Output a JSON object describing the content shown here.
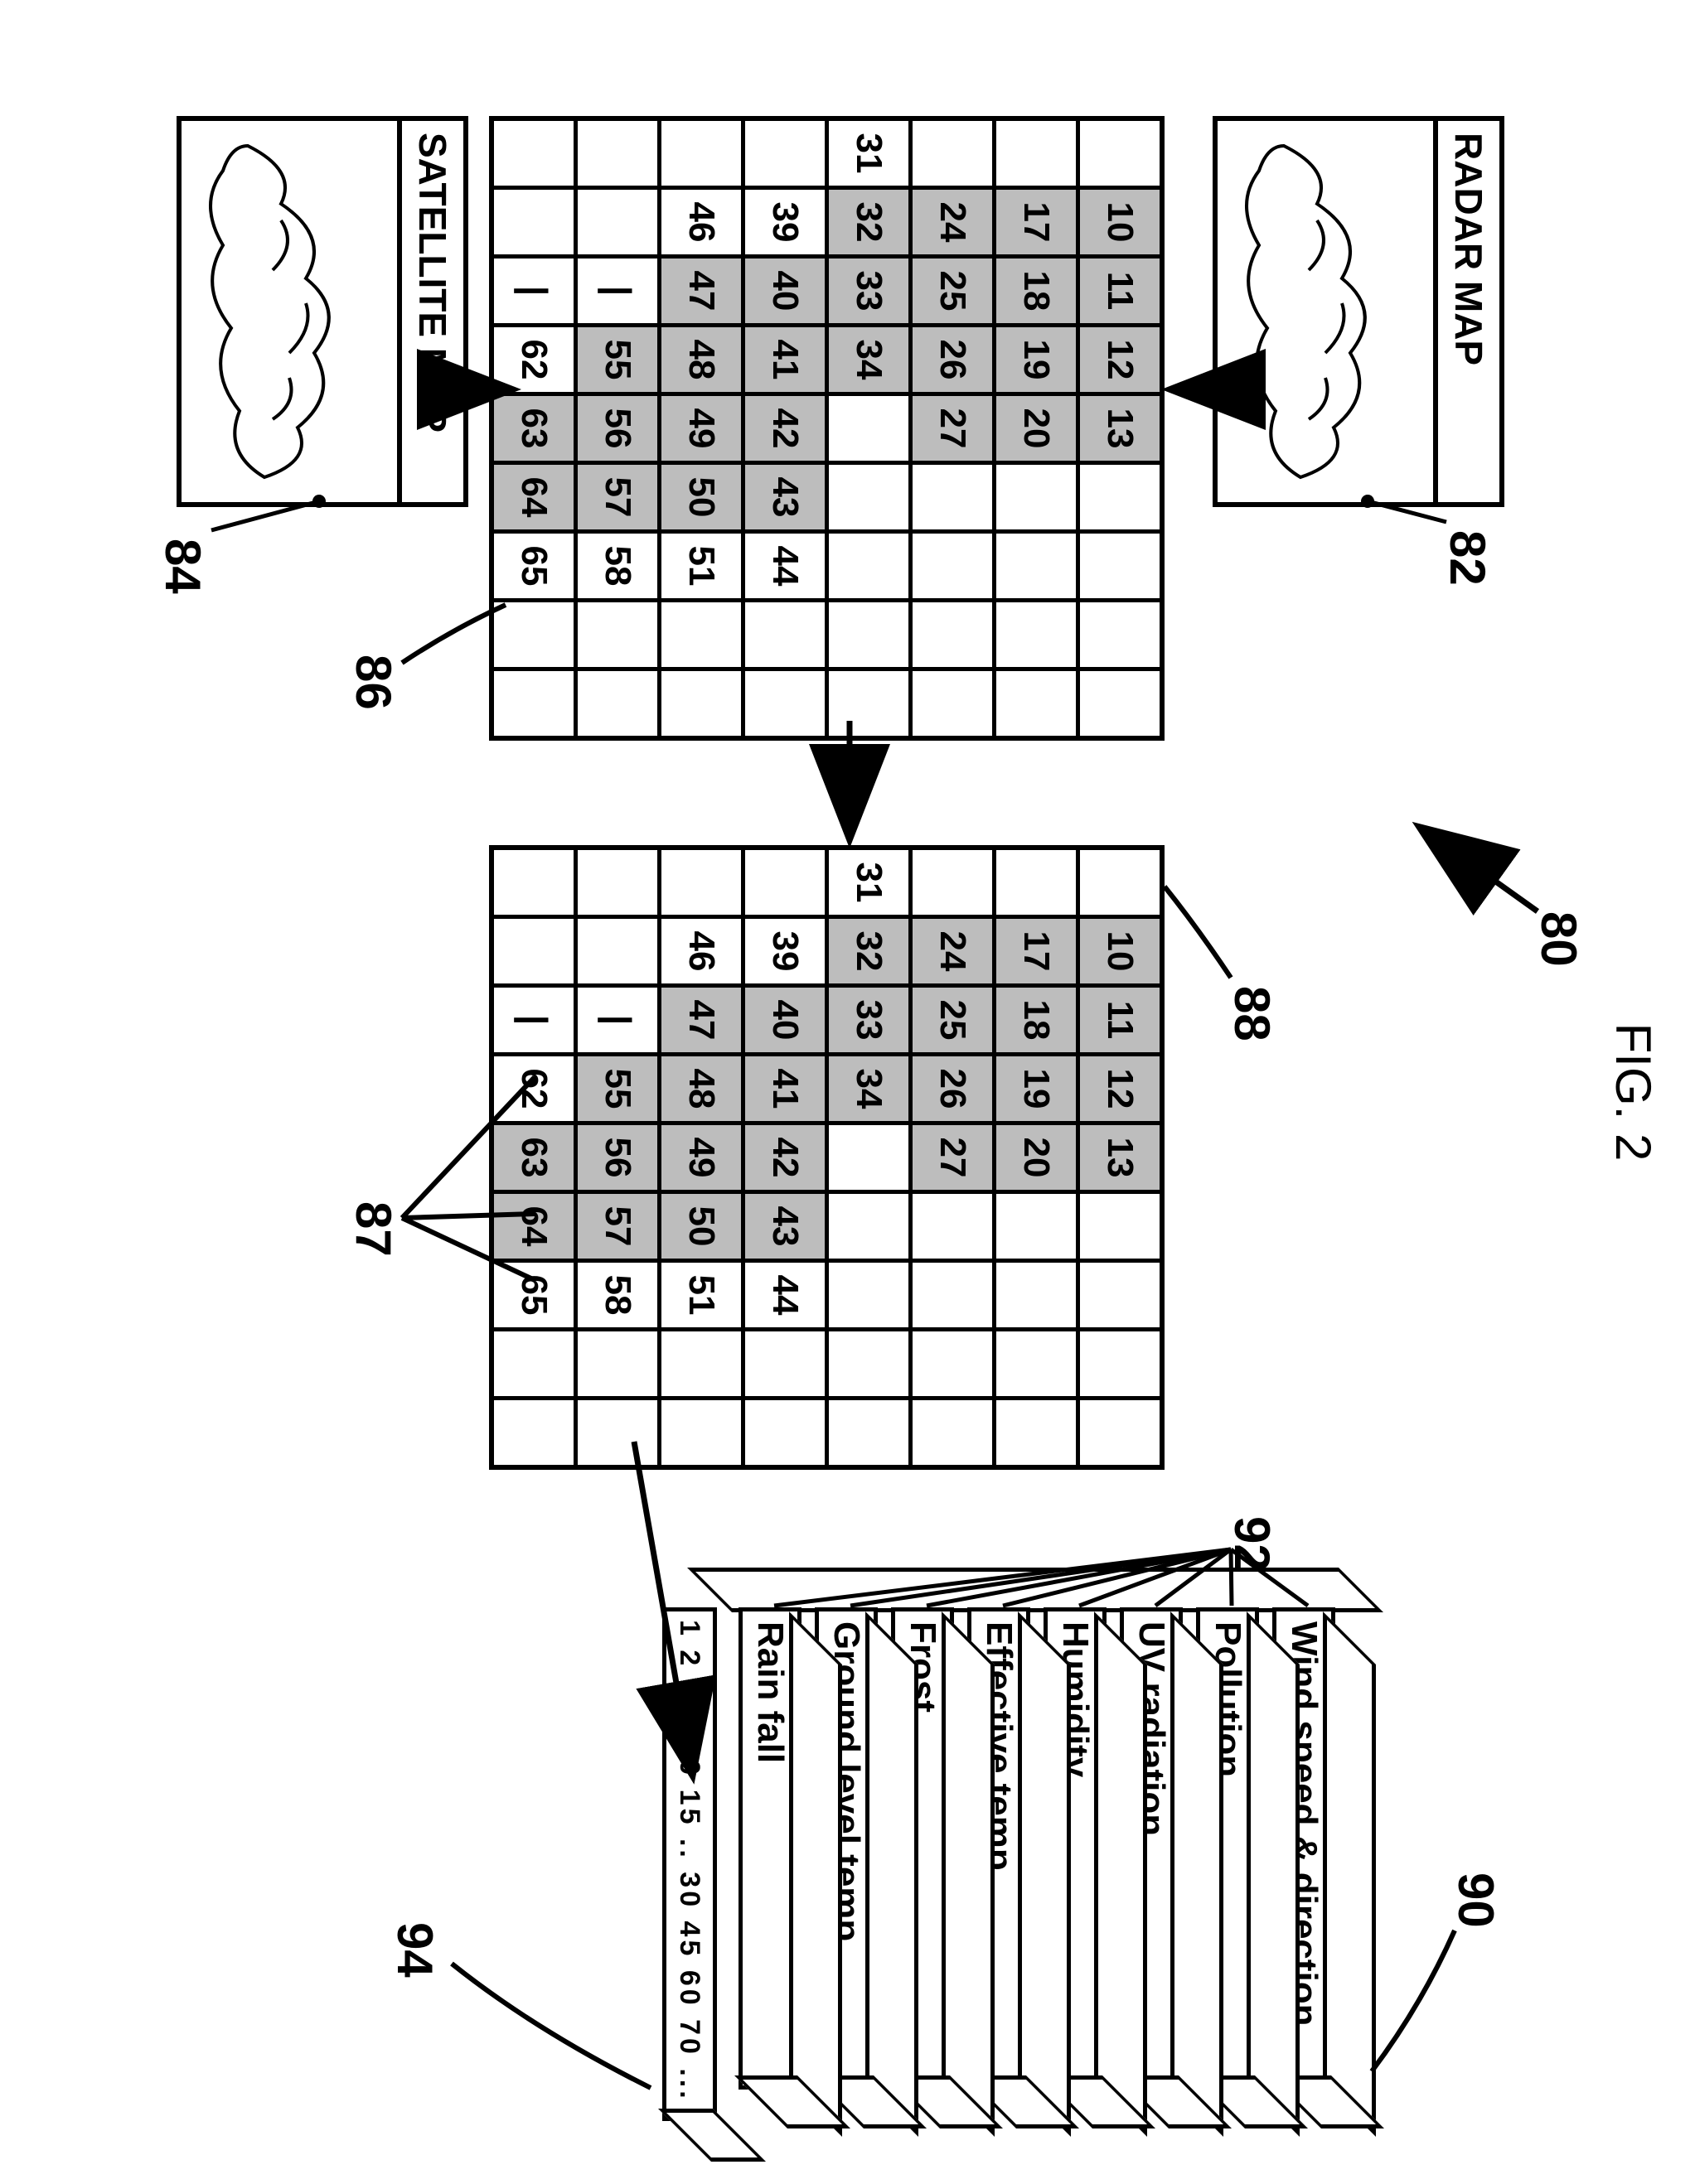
{
  "figure_label": "FIG. 2",
  "radar_map": {
    "title": "RADAR MAP",
    "ref": "82"
  },
  "satellite_map": {
    "title": "SATELLITE MAP",
    "ref": "84"
  },
  "ref_labels": {
    "main": "80",
    "radar": "82",
    "satellite": "84",
    "grid_left": "86",
    "grid_right_cells": "87",
    "grid_right": "88",
    "stack": "90",
    "stack_layers": "92",
    "timeline": "94"
  },
  "grid": {
    "cols": 9,
    "rows": 8,
    "cells": [
      [
        null,
        "10",
        "11",
        "12",
        "13",
        null,
        null,
        null,
        null
      ],
      [
        null,
        "17",
        "18",
        "19",
        "20",
        null,
        null,
        null,
        null
      ],
      [
        null,
        "24",
        "25",
        "26",
        "27",
        null,
        null,
        null,
        null
      ],
      [
        "31",
        "32",
        "33",
        "34",
        null,
        null,
        null,
        null,
        null
      ],
      [
        null,
        "39",
        "40",
        "41",
        "42",
        "43",
        "44",
        null,
        null
      ],
      [
        null,
        "46",
        "47",
        "48",
        "49",
        "50",
        "51",
        null,
        null
      ],
      [
        null,
        null,
        "|",
        "55",
        "56",
        "57",
        "58",
        null,
        null
      ],
      [
        null,
        null,
        "|",
        "62",
        "63",
        "64",
        "65",
        null,
        null
      ]
    ],
    "shaded": [
      [
        false,
        true,
        true,
        true,
        true,
        false,
        false,
        false,
        false
      ],
      [
        false,
        true,
        true,
        true,
        true,
        false,
        false,
        false,
        false
      ],
      [
        false,
        true,
        true,
        true,
        true,
        false,
        false,
        false,
        false
      ],
      [
        false,
        true,
        true,
        true,
        false,
        false,
        false,
        false,
        false
      ],
      [
        false,
        false,
        true,
        true,
        true,
        true,
        false,
        false,
        false
      ],
      [
        false,
        false,
        true,
        true,
        true,
        true,
        false,
        false,
        false
      ],
      [
        false,
        false,
        false,
        true,
        true,
        true,
        false,
        false,
        false
      ],
      [
        false,
        false,
        false,
        false,
        true,
        true,
        false,
        false,
        false
      ]
    ]
  },
  "layers": [
    "Wind speed & direction",
    "Pollution",
    "UV radiation",
    "Humidity",
    "Effective temp",
    "Frost",
    "Ground level temp",
    "Rain fall"
  ],
  "timeline_text": "1 2 3 5 10 15 .. 30 45 60 70 ...",
  "colors": {
    "stroke": "#000000",
    "shade": "#bdbdbd",
    "bg": "#ffffff"
  },
  "layout": {
    "layer_front_w": 560,
    "layer_front_h": 66,
    "layer_depth": 54,
    "layer_gap": 92,
    "spine_w": 44
  }
}
